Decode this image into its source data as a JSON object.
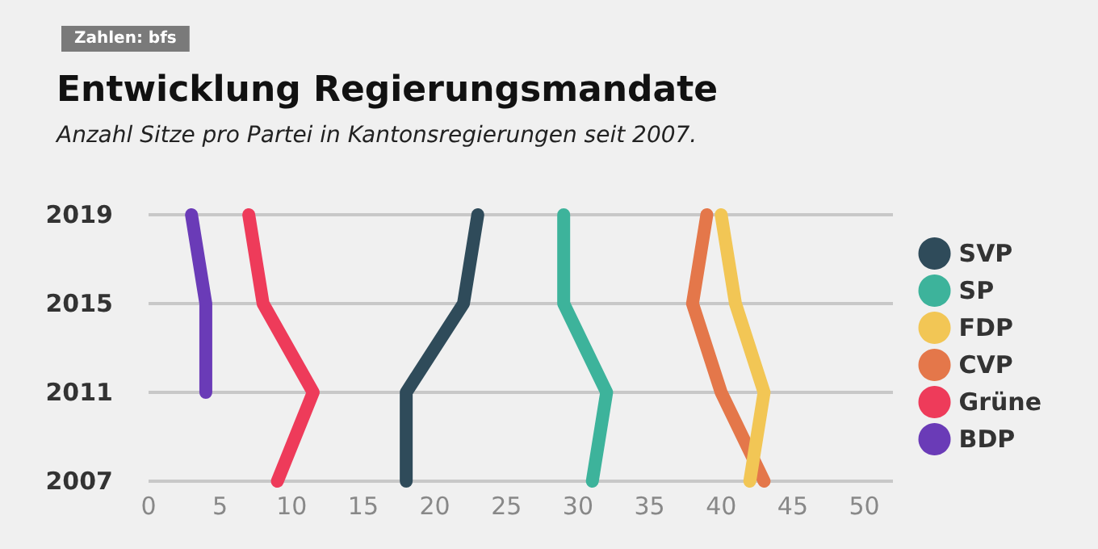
{
  "chart_data": {
    "type": "line",
    "orientation": "horizontal",
    "title": "Entwicklung Regierungsmandate",
    "subtitle": "Anzahl Sitze pro Partei in Kantonsregierungen seit 2007.",
    "annotations": [
      "Zahlen: bfs"
    ],
    "categories": [
      "2019",
      "2015",
      "2011",
      "2007"
    ],
    "series": [
      {
        "name": "SVP",
        "color": "#2f4b5a",
        "values": [
          23,
          22,
          18,
          18
        ]
      },
      {
        "name": "SP",
        "color": "#3db39b",
        "values": [
          29,
          29,
          32,
          31
        ]
      },
      {
        "name": "FDP",
        "color": "#f2c655",
        "values": [
          40,
          41,
          43,
          42
        ]
      },
      {
        "name": "CVP",
        "color": "#e4774a",
        "values": [
          39,
          38,
          40,
          43
        ]
      },
      {
        "name": "Grüne",
        "color": "#ee3b5a",
        "values": [
          7,
          8,
          11.5,
          9
        ]
      },
      {
        "name": "BDP",
        "color": "#6a3bb7",
        "values": [
          3,
          4,
          4,
          null
        ]
      }
    ],
    "xlim": [
      0,
      52
    ],
    "xticks": [
      0,
      5,
      10,
      15,
      20,
      25,
      30,
      35,
      40,
      45,
      50
    ],
    "grid": "y",
    "legend": "right",
    "marker": "none",
    "line_style": "solid"
  }
}
